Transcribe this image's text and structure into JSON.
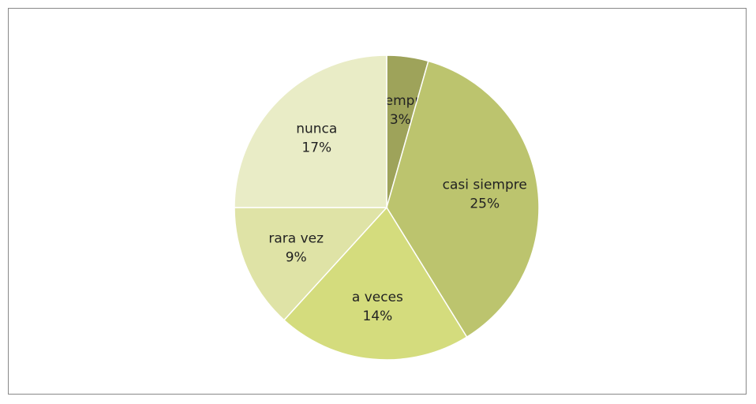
{
  "chart_data": {
    "type": "pie",
    "categories": [
      "Siempre",
      "casi siempre",
      "a veces",
      "rara vez",
      "nunca"
    ],
    "values": [
      3,
      25,
      14,
      9,
      17
    ],
    "value_labels": [
      "3%",
      "25%",
      "14%",
      "9%",
      "17%"
    ],
    "colors": [
      "#9ea35a",
      "#bcc46e",
      "#d4dc7d",
      "#dfe3a6",
      "#e9ecc6"
    ]
  }
}
